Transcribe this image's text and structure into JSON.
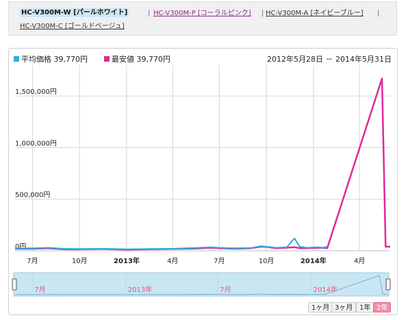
{
  "variants": {
    "selected": "HC-V300M-W [パールホワイト]",
    "others": [
      "HC-V300M-P [コーラルピンク]",
      "HC-V300M-A [ネイビーブルー]",
      "HC-V300M-C [ゴールドベージュ]"
    ],
    "separator": "|"
  },
  "legend": {
    "avg_label": "平均価格",
    "avg_value": "39,770円",
    "min_label": "最安値",
    "min_value": "39,770円",
    "date_range": "2012年5月28日 － 2014年5月31日"
  },
  "colors": {
    "avg": "#2aaee0",
    "min": "#e0279a",
    "navigator_fill": "#c9e6f3",
    "active_button": "#f28fa8"
  },
  "range_buttons": [
    "1ヶ月",
    "3ヶ月",
    "1年",
    "2年"
  ],
  "range_active": "2年",
  "chart_data": {
    "type": "line",
    "title": "",
    "xlabel": "",
    "ylabel": "",
    "ylim": [
      0,
      1800000
    ],
    "xlim": [
      "2012-05-28",
      "2014-05-31"
    ],
    "y_ticks": [
      0,
      500000,
      1000000,
      1500000
    ],
    "y_tick_labels": [
      "0円",
      "500,000円",
      "1,000,000円",
      "1,500,000円"
    ],
    "x_ticks": [
      {
        "date": "2012-07-01",
        "label": "7月",
        "bold": false
      },
      {
        "date": "2012-10-01",
        "label": "10月",
        "bold": false
      },
      {
        "date": "2013-01-01",
        "label": "2013年",
        "bold": true
      },
      {
        "date": "2013-04-01",
        "label": "4月",
        "bold": false
      },
      {
        "date": "2013-07-01",
        "label": "7月",
        "bold": false
      },
      {
        "date": "2013-10-01",
        "label": "10月",
        "bold": false
      },
      {
        "date": "2014-01-01",
        "label": "2014年",
        "bold": true
      },
      {
        "date": "2014-04-01",
        "label": "4月",
        "bold": false
      }
    ],
    "navigator_ticks": [
      {
        "date": "2012-07-01",
        "label": "7月"
      },
      {
        "date": "2013-01-01",
        "label": "2013年"
      },
      {
        "date": "2013-07-01",
        "label": "7月"
      },
      {
        "date": "2014-01-01",
        "label": "2014年"
      }
    ],
    "grid": true,
    "series": [
      {
        "name": "平均価格",
        "x": [
          "2012-05-28",
          "2012-07-01",
          "2012-08-01",
          "2012-09-01",
          "2012-10-01",
          "2012-11-15",
          "2013-01-01",
          "2013-02-15",
          "2013-04-01",
          "2013-05-15",
          "2013-06-15",
          "2013-07-01",
          "2013-08-01",
          "2013-09-01",
          "2013-09-20",
          "2013-10-01",
          "2013-10-20",
          "2013-11-10",
          "2013-11-25",
          "2013-12-05",
          "2013-12-20",
          "2014-01-10",
          "2014-01-20",
          "2014-01-28"
        ],
        "values": [
          25000,
          25000,
          30000,
          20000,
          18000,
          20000,
          15000,
          18000,
          20000,
          28000,
          35000,
          30000,
          25000,
          28000,
          45000,
          40000,
          30000,
          35000,
          120000,
          40000,
          30000,
          35000,
          30000,
          39770
        ]
      },
      {
        "name": "最安値",
        "x": [
          "2012-05-28",
          "2012-07-01",
          "2012-08-01",
          "2012-09-01",
          "2012-10-01",
          "2012-11-15",
          "2013-01-01",
          "2013-02-15",
          "2013-04-01",
          "2013-05-15",
          "2013-06-15",
          "2013-07-01",
          "2013-08-01",
          "2013-09-01",
          "2013-09-20",
          "2013-10-01",
          "2013-10-20",
          "2013-11-10",
          "2013-11-25",
          "2013-12-05",
          "2013-12-20",
          "2014-01-10",
          "2014-01-20",
          "2014-01-28",
          "2014-05-15",
          "2014-05-22",
          "2014-05-31"
        ],
        "values": [
          20000,
          20000,
          25000,
          15000,
          15000,
          18000,
          12000,
          15000,
          18000,
          22000,
          30000,
          25000,
          20000,
          25000,
          40000,
          38000,
          25000,
          30000,
          35000,
          25000,
          25000,
          30000,
          28000,
          25000,
          1670000,
          39770,
          39770
        ]
      }
    ]
  }
}
